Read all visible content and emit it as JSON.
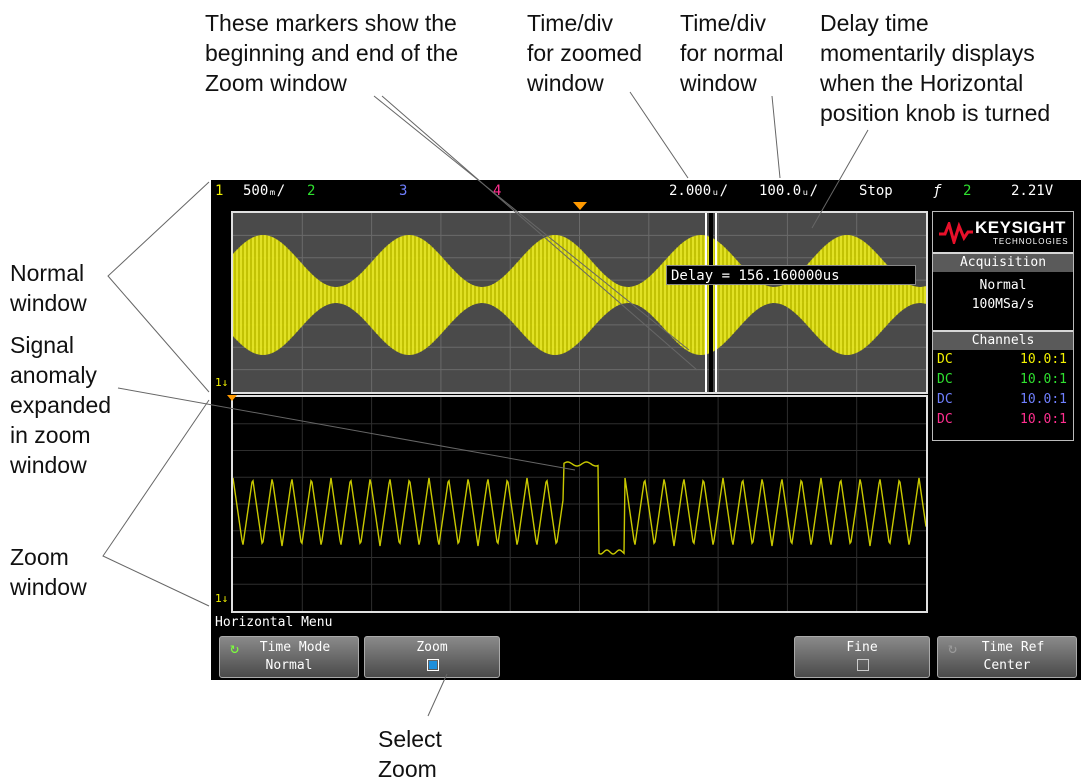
{
  "callouts": {
    "markers": [
      "These markers show the",
      "beginning and end of the",
      "Zoom window"
    ],
    "time_div_zoomed": [
      "Time/div",
      "for zoomed",
      "window"
    ],
    "time_div_normal": [
      "Time/div",
      "for normal",
      "window"
    ],
    "delay_time": [
      "Delay time",
      "momentarily displays",
      "when the Horizontal",
      "position knob is turned"
    ],
    "normal_window": [
      "Normal",
      "window"
    ],
    "signal_anomaly": [
      "Signal",
      "anomaly",
      "expanded",
      "in zoom",
      "window"
    ],
    "zoom_window": [
      "Zoom",
      "window"
    ],
    "select_zoom": [
      "Select",
      "Zoom"
    ]
  },
  "status": {
    "ch1_num": "1",
    "ch1_scale": "500ₘ/",
    "ch2_num": "2",
    "ch3_num": "3",
    "ch4_num": "4",
    "zoom_timebase": "2.000ᵤ/",
    "main_timebase": "100.0ᵤ/",
    "run_state": "Stop",
    "trigger_symbol": "ƒ",
    "trigger_channel": "2",
    "trigger_level": "2.21V"
  },
  "delay_readout": "Delay = 156.160000us",
  "ground_marker_label": "1",
  "side_panel": {
    "logo": "KEYSIGHT",
    "logo_sub": "TECHNOLOGIES",
    "acquisition_title": "Acquisition",
    "acquisition_mode": "Normal",
    "acquisition_rate": "100MSa/s",
    "channels_title": "Channels",
    "channels": [
      {
        "coupling": "DC",
        "probe": "10.0:1",
        "color": "#f2f200"
      },
      {
        "coupling": "DC",
        "probe": "10.0:1",
        "color": "#2fe02f"
      },
      {
        "coupling": "DC",
        "probe": "10.0:1",
        "color": "#6f7fff"
      },
      {
        "coupling": "DC",
        "probe": "10.0:1",
        "color": "#ff2f8f"
      }
    ]
  },
  "menu": {
    "title": "Horizontal Menu",
    "time_mode_label": "Time Mode",
    "time_mode_value": "Normal",
    "zoom_label": "Zoom",
    "zoom_checked": true,
    "fine_label": "Fine",
    "fine_checked": false,
    "time_ref_label": "Time Ref",
    "time_ref_value": "Center"
  },
  "colors": {
    "ch1": "#f2f200",
    "ch2": "#2fe02f",
    "ch3": "#6f7fff",
    "ch4": "#ff2f8f",
    "trace": "#dcdc00",
    "trigger_marker": "#ff9900",
    "zoom_checkbox": "#1e8fdc",
    "keysight_red": "#e8102a"
  }
}
